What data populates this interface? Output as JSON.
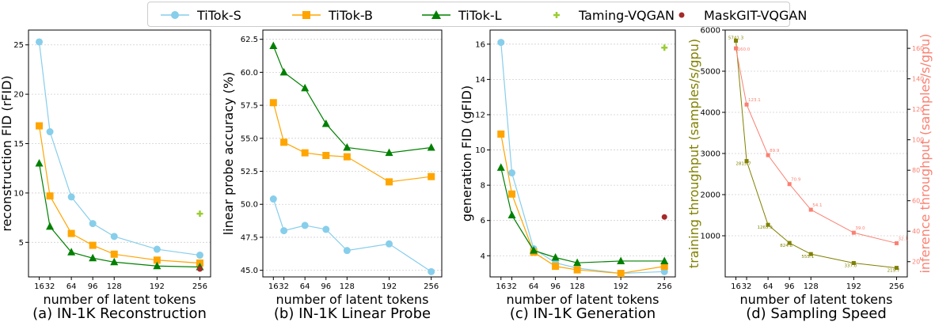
{
  "legend": [
    {
      "name": "TiTok-S",
      "color": "#87ceeb",
      "marker": "circle"
    },
    {
      "name": "TiTok-B",
      "color": "#ffa500",
      "marker": "square"
    },
    {
      "name": "TiTok-L",
      "color": "#008000",
      "marker": "triangle"
    },
    {
      "name": "Taming-VQGAN",
      "color": "#9acd32",
      "marker": "plus"
    },
    {
      "name": "MaskGIT-VQGAN",
      "color": "#a52a2a",
      "marker": "dot"
    }
  ],
  "chart_data": [
    {
      "type": "line",
      "caption": "(a) IN-1K Reconstruction",
      "xlabel": "number of latent tokens",
      "ylabel": "reconstruction FID (rFID)",
      "x": [
        16,
        32,
        64,
        96,
        128,
        192,
        256
      ],
      "xticks": [
        "16",
        "32",
        "64",
        "96",
        "128",
        "192",
        "256"
      ],
      "ylim": [
        1.5,
        26.5
      ],
      "yticks": [
        5,
        10,
        15,
        20,
        25
      ],
      "ytick_labels": [
        "5",
        "10",
        "15",
        "20",
        "25"
      ],
      "series": [
        {
          "name": "TiTok-S",
          "values": [
            25.3,
            16.2,
            9.6,
            6.9,
            5.6,
            4.3,
            3.7
          ]
        },
        {
          "name": "TiTok-B",
          "values": [
            16.8,
            9.7,
            5.9,
            4.7,
            3.8,
            3.2,
            2.9
          ]
        },
        {
          "name": "TiTok-L",
          "values": [
            13.0,
            6.6,
            4.0,
            3.4,
            3.0,
            2.6,
            2.5
          ]
        }
      ],
      "points": [
        {
          "name": "Taming-VQGAN",
          "x": 256,
          "y": 7.9
        },
        {
          "name": "MaskGIT-VQGAN",
          "x": 256,
          "y": 2.3
        }
      ]
    },
    {
      "type": "line",
      "caption": "(b) IN-1K Linear Probe",
      "xlabel": "number of latent tokens",
      "ylabel": "linear probe accuracy (%)",
      "x": [
        16,
        32,
        64,
        96,
        128,
        192,
        256
      ],
      "xticks": [
        "16",
        "32",
        "64",
        "96",
        "128",
        "192",
        "256"
      ],
      "ylim": [
        44.5,
        63.2
      ],
      "yticks": [
        45.0,
        47.5,
        50.0,
        52.5,
        55.0,
        57.5,
        60.0,
        62.5
      ],
      "ytick_labels": [
        "45.0",
        "47.5",
        "50.0",
        "52.5",
        "55.0",
        "57.5",
        "60.0",
        "62.5"
      ],
      "series": [
        {
          "name": "TiTok-S",
          "values": [
            50.4,
            48.0,
            48.4,
            48.1,
            46.5,
            47.0,
            44.9
          ]
        },
        {
          "name": "TiTok-B",
          "values": [
            57.7,
            54.7,
            53.9,
            53.7,
            53.6,
            51.7,
            52.1
          ]
        },
        {
          "name": "TiTok-L",
          "values": [
            62.0,
            60.0,
            58.8,
            56.1,
            54.3,
            53.9,
            54.3
          ]
        }
      ],
      "points": []
    },
    {
      "type": "line",
      "caption": "(c) IN-1K Generation",
      "xlabel": "number of latent tokens",
      "ylabel": "generation FID (gFID)",
      "x": [
        16,
        32,
        64,
        96,
        128,
        192,
        256
      ],
      "xticks": [
        "16",
        "32",
        "64",
        "96",
        "128",
        "192",
        "256"
      ],
      "ylim": [
        2.8,
        16.8
      ],
      "yticks": [
        4,
        6,
        8,
        10,
        12,
        14,
        16
      ],
      "ytick_labels": [
        "4",
        "6",
        "8",
        "10",
        "12",
        "14",
        "16"
      ],
      "series": [
        {
          "name": "TiTok-S",
          "values": [
            16.1,
            8.7,
            4.4,
            3.6,
            3.3,
            3.0,
            3.1
          ]
        },
        {
          "name": "TiTok-B",
          "values": [
            10.9,
            7.5,
            4.2,
            3.4,
            3.2,
            3.0,
            3.4
          ]
        },
        {
          "name": "TiTok-L",
          "values": [
            9.0,
            6.3,
            4.3,
            3.9,
            3.6,
            3.7,
            3.7
          ]
        }
      ],
      "points": [
        {
          "name": "Taming-VQGAN",
          "x": 256,
          "y": 15.8
        },
        {
          "name": "MaskGIT-VQGAN",
          "x": 256,
          "y": 6.2
        }
      ]
    },
    {
      "type": "line",
      "caption": "(d) Sampling Speed",
      "xlabel": "number of latent tokens",
      "ylabel": "training throughput (samples/s/gpu)",
      "ylabel2": "inference throughput (samples/s/gpu)",
      "x": [
        16,
        32,
        64,
        96,
        128,
        192,
        256
      ],
      "xticks": [
        "16",
        "32",
        "64",
        "96",
        "128",
        "192",
        "256"
      ],
      "ylim": [
        0,
        6000
      ],
      "yticks": [
        1000,
        2000,
        3000,
        4000,
        5000,
        6000
      ],
      "ytick_labels": [
        "1000",
        "2000",
        "3000",
        "4000",
        "5000",
        "6000"
      ],
      "ylim2": [
        10,
        172
      ],
      "yticks2": [
        20,
        40,
        60,
        80,
        100,
        120,
        140,
        160
      ],
      "ytick_labels2": [
        "20",
        "40",
        "60",
        "80",
        "100",
        "120",
        "140",
        "160"
      ],
      "series": [
        {
          "name": "training",
          "axis": "left",
          "color": "#808000",
          "values": [
            5741.3,
            2815.7,
            1265.9,
            824.8,
            555.1,
            337.0,
            219.7
          ],
          "labels": [
            "5741.3",
            "2815.7",
            "1265.9",
            "824.8",
            "555.1",
            "337.0",
            "219.7"
          ]
        },
        {
          "name": "inference",
          "axis": "right",
          "color": "#fa8072",
          "values": [
            160.0,
            123.1,
            89.9,
            70.9,
            54.1,
            39.0,
            32.1
          ],
          "labels": [
            "160.0",
            "123.1",
            "89.9",
            "70.9",
            "54.1",
            "39.0",
            "32.1"
          ]
        }
      ]
    }
  ]
}
